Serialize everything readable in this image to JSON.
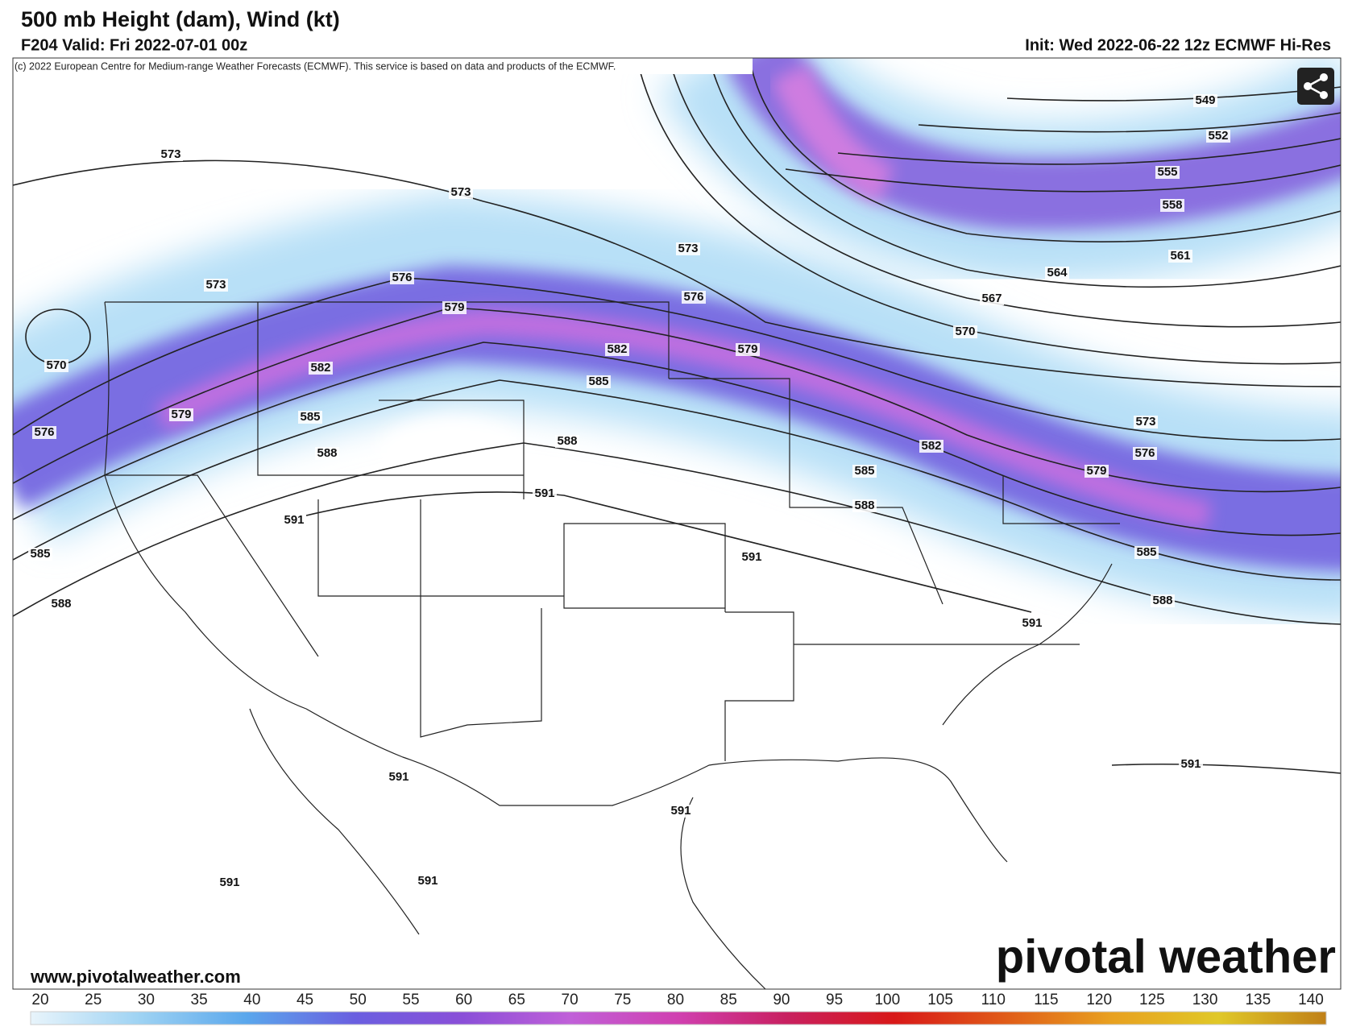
{
  "header": {
    "title": "500 mb Height (dam), Wind (kt)",
    "valid": "F204 Valid: Fri 2022-07-01 00z",
    "init": "Init: Wed 2022-06-22 12z ECMWF Hi-Res"
  },
  "map": {
    "copyright": "(c) 2022 European Centre for Medium-range Weather Forecasts (ECMWF). This service is based on data and products of the ECMWF.",
    "contour_labels": [
      "573",
      "573",
      "573",
      "576",
      "579",
      "582",
      "570",
      "579",
      "576",
      "585",
      "588",
      "591",
      "585",
      "588",
      "573",
      "576",
      "582",
      "585",
      "588",
      "591",
      "579",
      "591",
      "549",
      "552",
      "555",
      "558",
      "561",
      "564",
      "567",
      "570",
      "582",
      "585",
      "588",
      "579",
      "573",
      "576",
      "585",
      "588",
      "591",
      "591",
      "591",
      "591",
      "591",
      "591"
    ],
    "url": "www.pivotalweather.com",
    "watermark": "pivotal weather"
  },
  "colorbar": {
    "labels": [
      20,
      25,
      30,
      35,
      40,
      45,
      50,
      55,
      60,
      65,
      70,
      75,
      80,
      85,
      90,
      95,
      100,
      105,
      110,
      115,
      120,
      125,
      130,
      135,
      140
    ],
    "colors": [
      "#e8f4fb",
      "#9fd3f3",
      "#5aa7ec",
      "#6a5fe0",
      "#8a4fd8",
      "#c060d8",
      "#d040b0",
      "#c82060",
      "#d81818",
      "#e05a18",
      "#e8a020",
      "#e0c828",
      "#c08018"
    ]
  }
}
